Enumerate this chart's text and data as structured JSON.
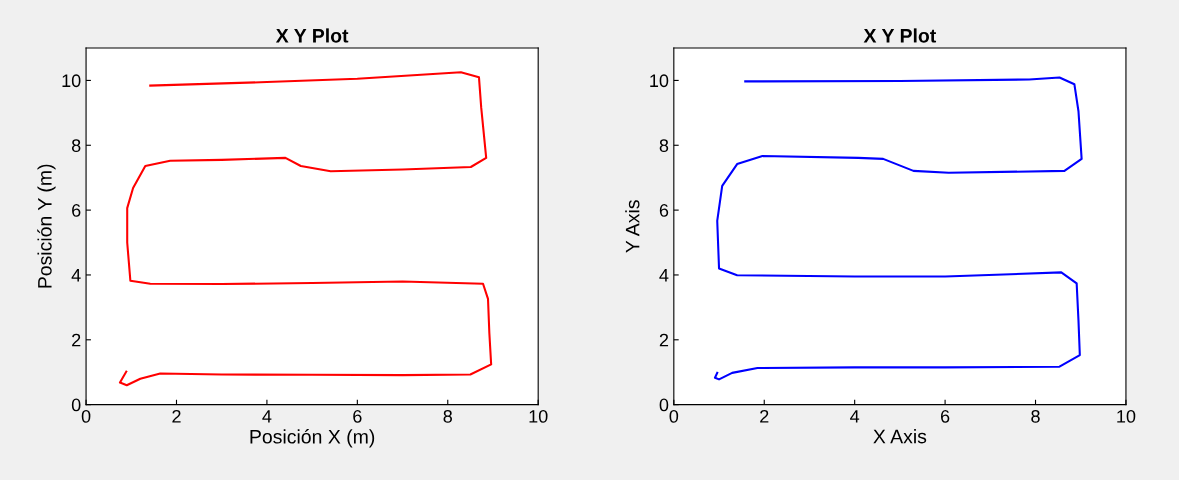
{
  "chart_data": [
    {
      "type": "line",
      "title": "X Y Plot",
      "xlabel": "Posición X (m)",
      "ylabel": "Posición Y (m)",
      "xlim": [
        0,
        10
      ],
      "ylim": [
        0,
        11
      ],
      "xticks": [
        0,
        2,
        4,
        6,
        8,
        10
      ],
      "yticks": [
        0,
        2,
        4,
        6,
        8,
        10
      ],
      "grid": false,
      "marker": "none",
      "line_style": "solid",
      "series": [
        {
          "color": "#ff0000",
          "x": [
            0.89,
            0.75,
            0.9,
            1.2,
            1.64,
            3.0,
            5.0,
            7.0,
            8.5,
            8.96,
            8.92,
            8.89,
            8.78,
            7.0,
            5.0,
            3.0,
            1.42,
            0.98,
            0.91,
            0.91,
            1.04,
            1.31,
            1.86,
            3.0,
            4.41,
            4.75,
            5.41,
            7.0,
            8.51,
            8.85,
            8.74,
            8.69,
            8.29,
            6.0,
            4.0,
            1.42
          ],
          "values": [
            1.02,
            0.68,
            0.6,
            0.8,
            0.96,
            0.93,
            0.92,
            0.91,
            0.93,
            1.24,
            2.2,
            3.26,
            3.73,
            3.8,
            3.75,
            3.72,
            3.73,
            3.82,
            5.0,
            6.06,
            6.68,
            7.36,
            7.52,
            7.55,
            7.61,
            7.36,
            7.2,
            7.25,
            7.33,
            7.61,
            9.16,
            10.1,
            10.25,
            10.05,
            9.95,
            9.84
          ]
        }
      ]
    },
    {
      "type": "line",
      "title": "X Y Plot",
      "xlabel": "X Axis",
      "ylabel": "Y Axis",
      "xlim": [
        0,
        10
      ],
      "ylim": [
        0,
        11
      ],
      "xticks": [
        0,
        2,
        4,
        6,
        8,
        10
      ],
      "yticks": [
        0,
        2,
        4,
        6,
        8,
        10
      ],
      "grid": false,
      "marker": "none",
      "line_style": "solid",
      "series": [
        {
          "color": "#0000ff",
          "x": [
            0.96,
            0.91,
            1.0,
            1.29,
            1.85,
            4.0,
            6.0,
            8.53,
            8.98,
            8.95,
            8.91,
            8.57,
            6.0,
            4.0,
            1.4,
            1.0,
            0.96,
            1.07,
            1.4,
            1.96,
            4.08,
            4.63,
            5.3,
            6.08,
            8.64,
            9.02,
            8.95,
            8.86,
            8.53,
            7.86,
            5.0,
            1.58
          ],
          "values": [
            0.98,
            0.83,
            0.78,
            0.98,
            1.13,
            1.15,
            1.15,
            1.17,
            1.53,
            2.6,
            3.74,
            4.08,
            3.95,
            3.95,
            3.99,
            4.2,
            5.67,
            6.75,
            7.42,
            7.67,
            7.61,
            7.58,
            7.21,
            7.15,
            7.21,
            7.58,
            9.05,
            9.88,
            10.09,
            10.03,
            9.98,
            9.97
          ]
        }
      ]
    }
  ]
}
